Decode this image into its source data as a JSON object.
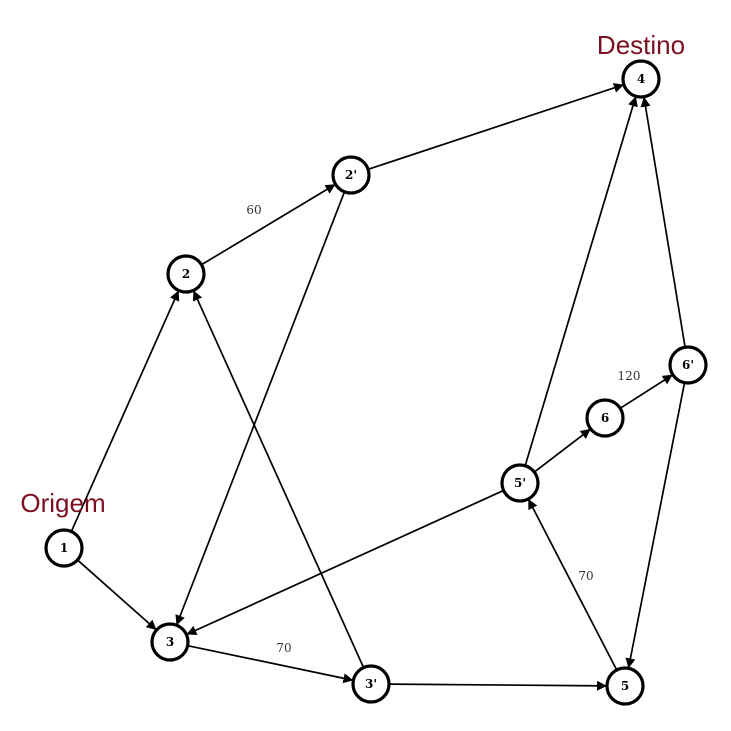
{
  "colors": {
    "accent": "#7a1020",
    "stroke": "#000000"
  },
  "labels": {
    "origin": "Origem",
    "destination": "Destino"
  },
  "nodes": [
    {
      "id": "n1",
      "label": "1"
    },
    {
      "id": "n2",
      "label": "2"
    },
    {
      "id": "n2p",
      "label": "2'"
    },
    {
      "id": "n3",
      "label": "3"
    },
    {
      "id": "n3p",
      "label": "3'"
    },
    {
      "id": "n4",
      "label": "4"
    },
    {
      "id": "n5",
      "label": "5"
    },
    {
      "id": "n5p",
      "label": "5'"
    },
    {
      "id": "n6",
      "label": "6"
    },
    {
      "id": "n6p",
      "label": "6'"
    }
  ],
  "edges": [
    {
      "from": "n1",
      "to": "n2",
      "weight": ""
    },
    {
      "from": "n1",
      "to": "n3",
      "weight": ""
    },
    {
      "from": "n2",
      "to": "n2p",
      "weight": "60"
    },
    {
      "from": "n2p",
      "to": "n4",
      "weight": ""
    },
    {
      "from": "n2p",
      "to": "n3",
      "weight": ""
    },
    {
      "from": "n3",
      "to": "n3p",
      "weight": "70"
    },
    {
      "from": "n3p",
      "to": "n2",
      "weight": ""
    },
    {
      "from": "n3p",
      "to": "n5",
      "weight": ""
    },
    {
      "from": "n5",
      "to": "n5p",
      "weight": "70"
    },
    {
      "from": "n5p",
      "to": "n3",
      "weight": ""
    },
    {
      "from": "n5p",
      "to": "n4",
      "weight": ""
    },
    {
      "from": "n5p",
      "to": "n6",
      "weight": ""
    },
    {
      "from": "n6",
      "to": "n6p",
      "weight": "120"
    },
    {
      "from": "n6p",
      "to": "n4",
      "weight": ""
    },
    {
      "from": "n6p",
      "to": "n5",
      "weight": ""
    }
  ]
}
